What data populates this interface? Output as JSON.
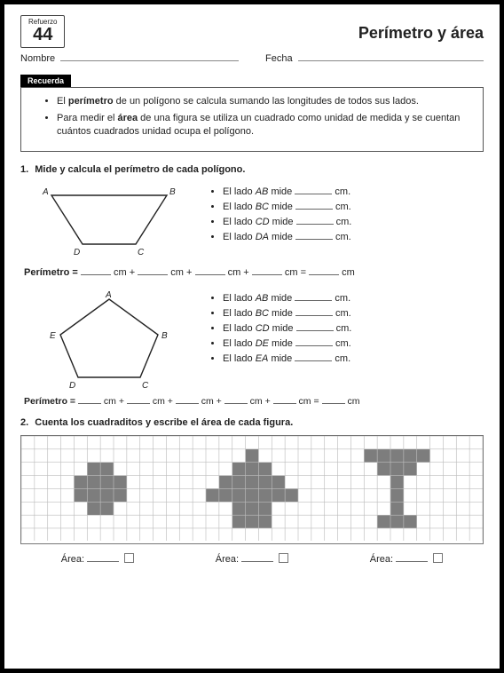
{
  "badge": {
    "ref": "Refuerzo",
    "num": "44"
  },
  "title": "Perímetro y área",
  "fields": {
    "nombre": "Nombre",
    "fecha": "Fecha"
  },
  "recuerda": {
    "tab": "Recuerda",
    "b1a": "El ",
    "b1b": "perímetro",
    "b1c": " de un polígono se calcula sumando las longitudes de todos sus lados.",
    "b2a": "Para medir el ",
    "b2b": "área",
    "b2c": " de una figura se utiliza un cuadrado como unidad de medida y se cuentan cuántos cuadrados unidad ocupa el polígono."
  },
  "q1": {
    "num": "1.",
    "text": "Mide y calcula el perímetro de cada polígono.",
    "trap": {
      "labels": {
        "A": "A",
        "B": "B",
        "C": "C",
        "D": "D"
      },
      "sides": [
        {
          "pre": "El lado ",
          "seg": "AB",
          "mid": " mide ",
          "unit": " cm."
        },
        {
          "pre": "El lado ",
          "seg": "BC",
          "mid": " mide ",
          "unit": " cm."
        },
        {
          "pre": "El lado ",
          "seg": "CD",
          "mid": " mide ",
          "unit": " cm."
        },
        {
          "pre": "El lado ",
          "seg": "DA",
          "mid": " mide ",
          "unit": " cm."
        }
      ],
      "per": {
        "label": "Perímetro =",
        "unit": "cm",
        "plus": "+",
        "eq": "="
      }
    },
    "pent": {
      "labels": {
        "A": "A",
        "B": "B",
        "C": "C",
        "D": "D",
        "E": "E"
      },
      "sides": [
        {
          "pre": "El lado ",
          "seg": "AB",
          "mid": " mide ",
          "unit": " cm."
        },
        {
          "pre": "El lado ",
          "seg": "BC",
          "mid": " mide ",
          "unit": " cm."
        },
        {
          "pre": "El lado ",
          "seg": "CD",
          "mid": " mide ",
          "unit": " cm."
        },
        {
          "pre": "El lado ",
          "seg": "DE",
          "mid": " mide ",
          "unit": " cm."
        },
        {
          "pre": "El lado ",
          "seg": "EA",
          "mid": " mide ",
          "unit": " cm."
        }
      ],
      "per": {
        "label": "Perímetro =",
        "unit": "cm",
        "plus": "+",
        "eq": "="
      }
    }
  },
  "q2": {
    "num": "2.",
    "text": "Cuenta los cuadraditos y escribe el área de cada figura.",
    "grid": {
      "cols": 35,
      "rows": 8,
      "cell": 14,
      "grid_color": "#bdbdbd",
      "fill_color": "#7d7d7d",
      "bg": "#ffffff",
      "shapes": {
        "plus": {
          "ox": 3,
          "cells": [
            [
              2,
              1
            ],
            [
              3,
              1
            ],
            [
              1,
              2
            ],
            [
              2,
              2
            ],
            [
              3,
              2
            ],
            [
              4,
              2
            ],
            [
              1,
              3
            ],
            [
              2,
              3
            ],
            [
              3,
              3
            ],
            [
              4,
              3
            ],
            [
              2,
              4
            ],
            [
              3,
              4
            ]
          ]
        },
        "arrow": {
          "ox": 14,
          "cells": [
            [
              3,
              0
            ],
            [
              2,
              1
            ],
            [
              3,
              1
            ],
            [
              4,
              1
            ],
            [
              1,
              2
            ],
            [
              2,
              2
            ],
            [
              3,
              2
            ],
            [
              4,
              2
            ],
            [
              5,
              2
            ],
            [
              0,
              3
            ],
            [
              1,
              3
            ],
            [
              2,
              3
            ],
            [
              3,
              3
            ],
            [
              4,
              3
            ],
            [
              5,
              3
            ],
            [
              6,
              3
            ],
            [
              2,
              4
            ],
            [
              3,
              4
            ],
            [
              4,
              4
            ],
            [
              2,
              5
            ],
            [
              3,
              5
            ],
            [
              4,
              5
            ]
          ]
        },
        "goblet": {
          "ox": 26,
          "cells": [
            [
              0,
              0
            ],
            [
              1,
              0
            ],
            [
              2,
              0
            ],
            [
              3,
              0
            ],
            [
              4,
              0
            ],
            [
              1,
              1
            ],
            [
              2,
              1
            ],
            [
              3,
              1
            ],
            [
              2,
              2
            ],
            [
              2,
              3
            ],
            [
              2,
              4
            ],
            [
              1,
              5
            ],
            [
              2,
              5
            ],
            [
              3,
              5
            ]
          ]
        }
      }
    },
    "area_label": "Área:"
  }
}
